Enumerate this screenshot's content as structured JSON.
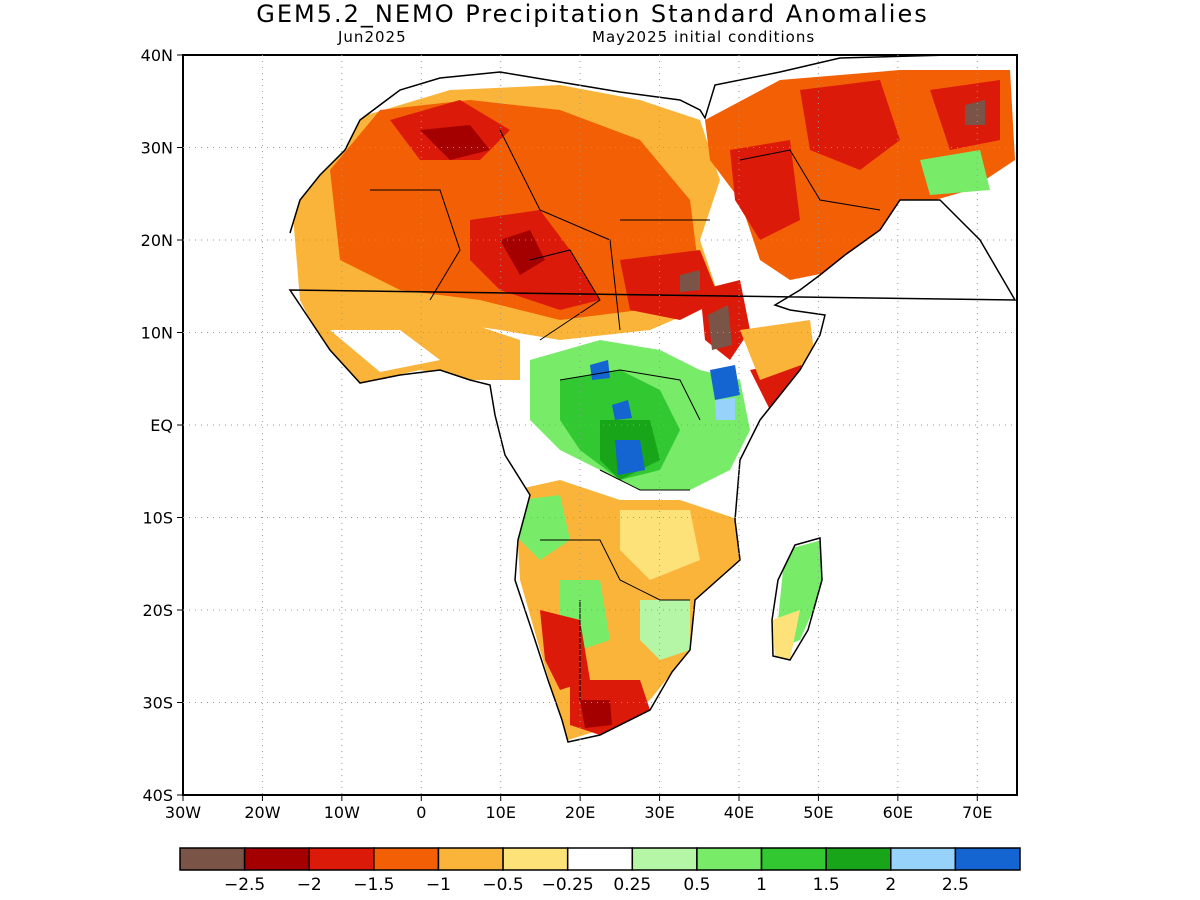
{
  "title": "GEM5.2_NEMO Precipitation Standard Anomalies",
  "subtitle_left": "Jun2025",
  "subtitle_right": "May2025 initial conditions",
  "map": {
    "lat_range": [
      -40,
      40
    ],
    "lon_range": [
      -30,
      75
    ],
    "grid": "dotted",
    "y_ticks": [
      "40N",
      "30N",
      "20N",
      "10N",
      "EQ",
      "10S",
      "20S",
      "30S",
      "40S"
    ],
    "x_ticks": [
      "30W",
      "20W",
      "10W",
      "0",
      "10E",
      "20E",
      "30E",
      "40E",
      "50E",
      "60E",
      "70E"
    ]
  },
  "colorbar": {
    "colors": [
      "#7a5447",
      "#a50000",
      "#dc1a0a",
      "#f25f05",
      "#fbb43a",
      "#fde27a",
      "#ffffff",
      "#b4f5a6",
      "#78eb68",
      "#32c832",
      "#19a519",
      "#96d2fa",
      "#1464d2"
    ],
    "labels": [
      "−2.5",
      "−2",
      "−1.5",
      "−1",
      "−0.5",
      "−0.25",
      "0.25",
      "0.5",
      "1",
      "1.5",
      "2",
      "2.5"
    ]
  }
}
